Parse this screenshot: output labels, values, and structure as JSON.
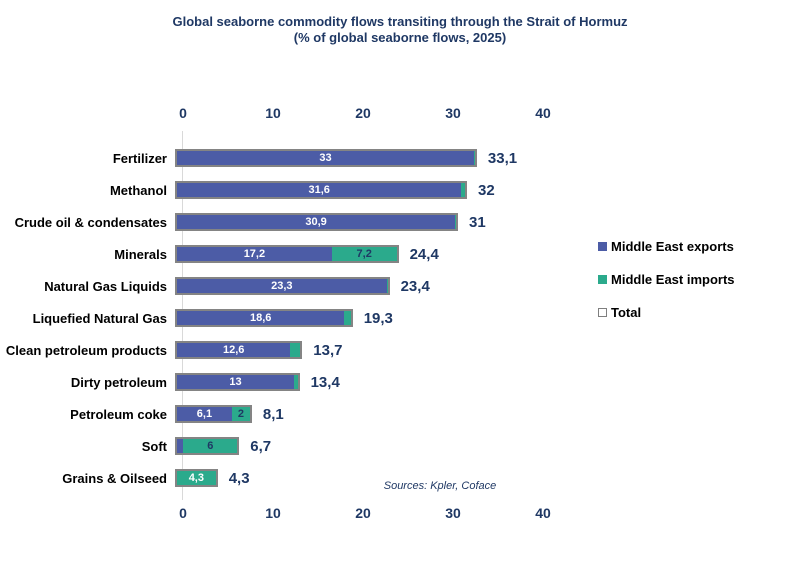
{
  "title": {
    "line1": "Global seaborne commodity flows transiting through the Strait of Hormuz",
    "line2": "(% of global seaborne flows, 2025)"
  },
  "source": "Sources: Kpler, Coface",
  "legend": [
    {
      "label": "Middle East exports",
      "color": "#4C5CA6"
    },
    {
      "label": "Middle East imports",
      "color": "#2BAA8C"
    },
    {
      "label": "Total",
      "color": "#FFFFFF"
    }
  ],
  "colors": {
    "exports_bar": "#4C5CA6",
    "imports_bar": "#2BAA8C",
    "total_outline": "#848484",
    "navy_text": "#1F3864",
    "category_text": "#000000",
    "axis_line": "#D9D9D9"
  },
  "chart_data": {
    "type": "bar",
    "orientation": "horizontal",
    "stacked": true,
    "title": "Global seaborne commodity flows transiting through the Strait of Hormuz (% of global seaborne flows, 2025)",
    "xlabel": "% of global seaborne flows",
    "xlim": [
      0,
      40
    ],
    "x_ticks": [
      "0",
      "10",
      "20",
      "30",
      "40"
    ],
    "grid": false,
    "legend_position": "right",
    "categories": [
      "Fertilizer",
      "Methanol",
      "Crude oil & condensates",
      "Minerals",
      "Natural Gas Liquids",
      "Liquefied Natural Gas",
      "Clean petroleum products",
      "Dirty petroleum",
      "Petroleum coke",
      "Soft",
      "Grains & Oilseed"
    ],
    "series": [
      {
        "name": "Middle East exports",
        "values": [
          33,
          31.6,
          30.9,
          17.2,
          23.3,
          18.6,
          12.6,
          13,
          6.1,
          0.7,
          0
        ]
      },
      {
        "name": "Middle East imports",
        "values": [
          0.1,
          0.4,
          0.1,
          7.2,
          0.1,
          0.7,
          1.1,
          0.4,
          2,
          6,
          4.3
        ]
      },
      {
        "name": "Total",
        "values": [
          33.1,
          32,
          31,
          24.4,
          23.4,
          19.3,
          13.7,
          13.4,
          8.1,
          6.7,
          4.3
        ]
      }
    ],
    "rows": [
      {
        "category": "Fertilizer",
        "exports": 33,
        "imports": 0.1,
        "total": 33.1,
        "exports_label": "33",
        "imports_label": "",
        "imports_label_color": "white",
        "total_label": "33,1"
      },
      {
        "category": "Methanol",
        "exports": 31.6,
        "imports": 0.4,
        "total": 32,
        "exports_label": "31,6",
        "imports_label": "",
        "imports_label_color": "white",
        "total_label": "32"
      },
      {
        "category": "Crude oil & condensates",
        "exports": 30.9,
        "imports": 0.1,
        "total": 31,
        "exports_label": "30,9",
        "imports_label": "",
        "imports_label_color": "white",
        "total_label": "31"
      },
      {
        "category": "Minerals",
        "exports": 17.2,
        "imports": 7.2,
        "total": 24.4,
        "exports_label": "17,2",
        "imports_label": "7,2",
        "imports_label_color": "navy",
        "total_label": "24,4"
      },
      {
        "category": "Natural Gas Liquids",
        "exports": 23.3,
        "imports": 0.1,
        "total": 23.4,
        "exports_label": "23,3",
        "imports_label": "",
        "imports_label_color": "white",
        "total_label": "23,4"
      },
      {
        "category": "Liquefied Natural Gas",
        "exports": 18.6,
        "imports": 0.7,
        "total": 19.3,
        "exports_label": "18,6",
        "imports_label": "",
        "imports_label_color": "white",
        "total_label": "19,3"
      },
      {
        "category": "Clean petroleum products",
        "exports": 12.6,
        "imports": 1.1,
        "total": 13.7,
        "exports_label": "12,6",
        "imports_label": "",
        "imports_label_color": "white",
        "total_label": "13,7"
      },
      {
        "category": "Dirty petroleum",
        "exports": 13,
        "imports": 0.4,
        "total": 13.4,
        "exports_label": "13",
        "imports_label": "",
        "imports_label_color": "white",
        "total_label": "13,4"
      },
      {
        "category": "Petroleum coke",
        "exports": 6.1,
        "imports": 2,
        "total": 8.1,
        "exports_label": "6,1",
        "imports_label": "2",
        "imports_label_color": "navy",
        "total_label": "8,1"
      },
      {
        "category": "Soft",
        "exports": 0.7,
        "imports": 6,
        "total": 6.7,
        "exports_label": "",
        "imports_label": "6",
        "imports_label_color": "navy",
        "total_label": "6,7"
      },
      {
        "category": "Grains & Oilseed",
        "exports": 0,
        "imports": 4.3,
        "total": 4.3,
        "exports_label": "",
        "imports_label": "4,3",
        "imports_label_color": "white",
        "total_label": "4,3"
      }
    ]
  }
}
